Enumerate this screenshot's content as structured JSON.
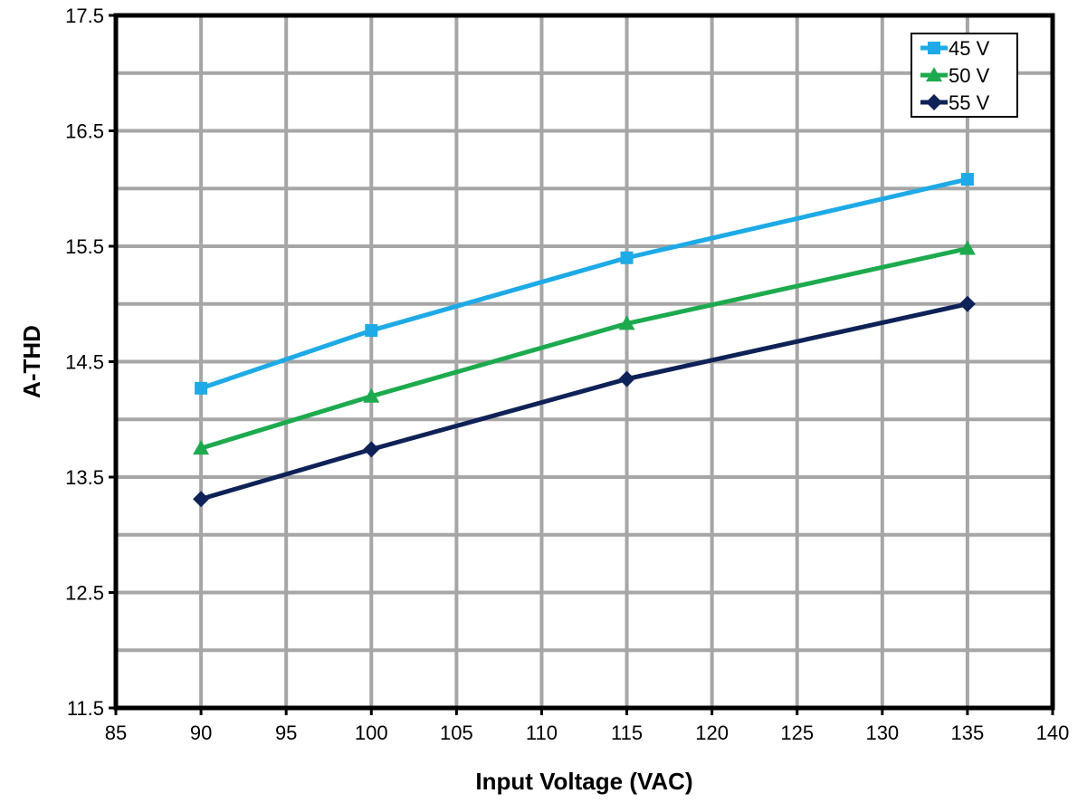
{
  "chart_data": {
    "type": "line",
    "title": "",
    "xlabel": "Input Voltage (VAC)",
    "ylabel": "A-THD",
    "xlim": [
      85,
      140
    ],
    "ylim": [
      11.5,
      17.5
    ],
    "x_ticks": [
      "85",
      "90",
      "95",
      "100",
      "105",
      "110",
      "115",
      "120",
      "125",
      "130",
      "135",
      "140"
    ],
    "y_ticks": [
      "11.5",
      "12.5",
      "13.5",
      "14.5",
      "15.5",
      "16.5",
      "17.5"
    ],
    "grid": true,
    "legend_position": "top-right",
    "x": [
      90,
      100,
      115,
      135
    ],
    "series": [
      {
        "name": "45 V",
        "color": "#1EAAE6",
        "marker": "square",
        "values": [
          14.27,
          14.77,
          15.4,
          16.08
        ]
      },
      {
        "name": "50 V",
        "color": "#1DAA4E",
        "marker": "triangle",
        "values": [
          13.75,
          14.2,
          14.83,
          15.48
        ]
      },
      {
        "name": "55 V",
        "color": "#0E2257",
        "marker": "diamond",
        "values": [
          13.31,
          13.74,
          14.35,
          15.0
        ]
      }
    ]
  }
}
